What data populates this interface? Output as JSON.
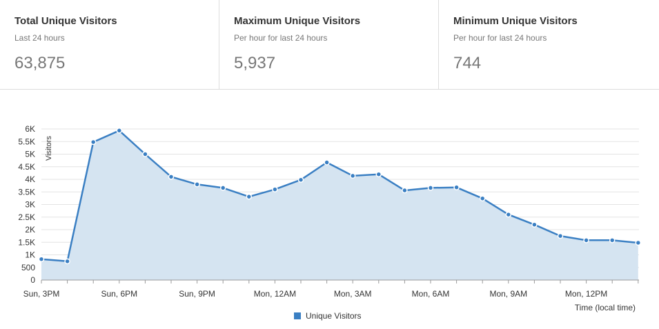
{
  "stats": [
    {
      "title": "Total Unique Visitors",
      "subtitle": "Last 24 hours",
      "value": "63,875"
    },
    {
      "title": "Maximum Unique Visitors",
      "subtitle": "Per hour for last 24 hours",
      "value": "5,937"
    },
    {
      "title": "Minimum Unique Visitors",
      "subtitle": "Per hour for last 24 hours",
      "value": "744"
    }
  ],
  "chart_data": {
    "type": "area",
    "title": "",
    "ylabel": "Visitors",
    "xlabel": "Time (local time)",
    "ylim": [
      0,
      6000
    ],
    "yticks": [
      0,
      500,
      1000,
      1500,
      2000,
      2500,
      3000,
      3500,
      4000,
      4500,
      5000,
      5500,
      6000
    ],
    "ytick_labels": [
      "0",
      "500",
      "1K",
      "1.5K",
      "2K",
      "2.5K",
      "3K",
      "3.5K",
      "4K",
      "4.5K",
      "5K",
      "5.5K",
      "6K"
    ],
    "xtick_labels": [
      {
        "index": 0,
        "label": "Sun, 3PM"
      },
      {
        "index": 3,
        "label": "Sun, 6PM"
      },
      {
        "index": 6,
        "label": "Sun, 9PM"
      },
      {
        "index": 9,
        "label": "Mon, 12AM"
      },
      {
        "index": 12,
        "label": "Mon, 3AM"
      },
      {
        "index": 15,
        "label": "Mon, 6AM"
      },
      {
        "index": 18,
        "label": "Mon, 9AM"
      },
      {
        "index": 21,
        "label": "Mon, 12PM"
      }
    ],
    "series": [
      {
        "name": "Unique Visitors",
        "color": "#3a7fc3",
        "fill": "#d5e4f1",
        "values": [
          830,
          744,
          5480,
          5937,
          5000,
          4100,
          3800,
          3660,
          3310,
          3600,
          3980,
          4670,
          4140,
          4200,
          3560,
          3660,
          3680,
          3240,
          2600,
          2200,
          1750,
          1580,
          1580,
          1480
        ]
      }
    ],
    "grid": true,
    "legend_position": "bottom-center"
  }
}
